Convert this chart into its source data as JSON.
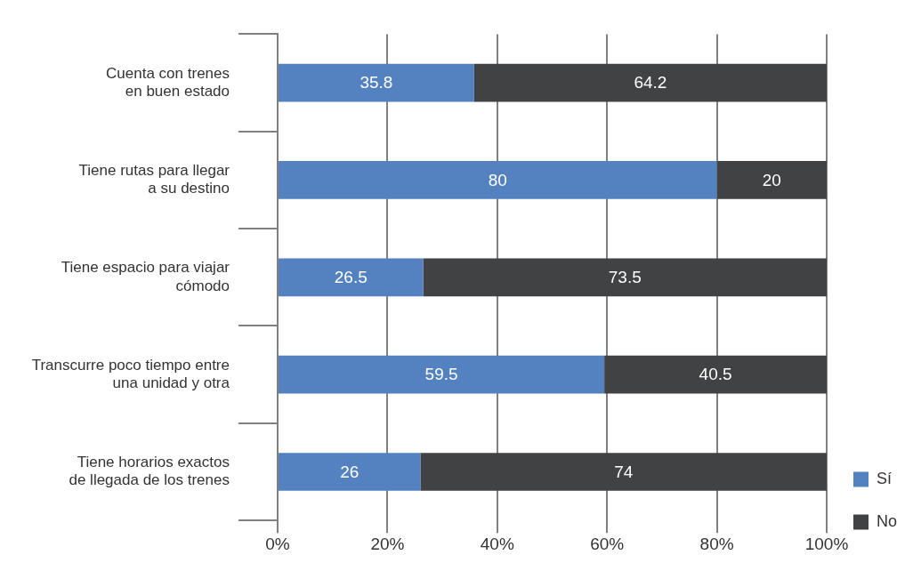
{
  "chart_data": {
    "type": "bar",
    "orientation": "horizontal",
    "stacked": true,
    "categories": [
      "Cuenta con trenes\nen buen estado",
      "Tiene rutas para llegar\na su destino",
      "Tiene espacio para viajar\ncómodo",
      "Transcurre poco tiempo entre\nuna unidad y otra",
      "Tiene horarios exactos\nde llegada de los trenes"
    ],
    "series": [
      {
        "name": "Sí",
        "color": "#5482c0",
        "values": [
          35.8,
          80,
          26.5,
          59.5,
          26
        ]
      },
      {
        "name": "No",
        "color": "#414244",
        "values": [
          64.2,
          20,
          73.5,
          40.5,
          74
        ]
      }
    ],
    "xlim": [
      0,
      100
    ],
    "xticks": [
      {
        "value": 0,
        "label": "0%"
      },
      {
        "value": 20,
        "label": "20%"
      },
      {
        "value": 40,
        "label": "40%"
      },
      {
        "value": 60,
        "label": "60%"
      },
      {
        "value": 80,
        "label": "80%"
      },
      {
        "value": 100,
        "label": "100%"
      }
    ],
    "grid": "x",
    "legend": "bottom right",
    "data_labels": true
  }
}
